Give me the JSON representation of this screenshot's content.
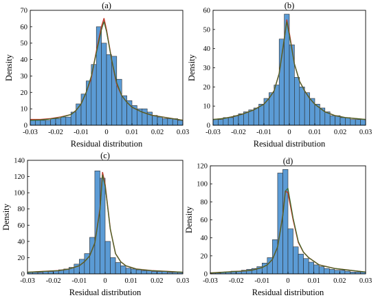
{
  "colors": {
    "bar_fill": "#5b9bd5",
    "bar_stroke": "#2b2b2b",
    "density_curve": "#c0392b",
    "fit_curve": "#3d6b2a"
  },
  "chart_data": [
    {
      "type": "bar",
      "title": "(a)",
      "xlabel": "Residual distribution",
      "ylabel": "Density",
      "xlim": [
        -0.03,
        0.03
      ],
      "ylim": [
        0,
        70
      ],
      "xticks": [
        "-0.03",
        "-0.02",
        "-0.01",
        "0",
        "0.01",
        "0.02",
        "0.03"
      ],
      "yticks": [
        "0",
        "10",
        "20",
        "30",
        "40",
        "50",
        "60",
        "70"
      ],
      "bin_edges_range": [
        -0.03,
        0.03
      ],
      "bin_width": 0.002,
      "values": [
        3,
        3,
        3,
        3,
        4,
        4,
        5,
        5,
        8,
        13,
        19,
        27,
        37,
        60,
        50,
        43,
        42,
        28,
        18,
        15,
        12,
        10,
        10,
        8,
        6,
        5,
        4,
        4,
        4,
        3
      ],
      "density_curve": [
        [
          -0.03,
          3.5
        ],
        [
          -0.026,
          3.5
        ],
        [
          -0.022,
          4
        ],
        [
          -0.018,
          5
        ],
        [
          -0.014,
          6.5
        ],
        [
          -0.012,
          9
        ],
        [
          -0.01,
          13
        ],
        [
          -0.008,
          20
        ],
        [
          -0.006,
          29
        ],
        [
          -0.004,
          45
        ],
        [
          -0.002,
          60
        ],
        [
          -0.001,
          65
        ],
        [
          0,
          58
        ],
        [
          0.002,
          40
        ],
        [
          0.004,
          25
        ],
        [
          0.006,
          18
        ],
        [
          0.008,
          14
        ],
        [
          0.01,
          11
        ],
        [
          0.014,
          8
        ],
        [
          0.018,
          6
        ],
        [
          0.022,
          5
        ],
        [
          0.026,
          4
        ],
        [
          0.03,
          3
        ]
      ],
      "fit_curve": [
        [
          -0.03,
          3
        ],
        [
          -0.026,
          3.2
        ],
        [
          -0.022,
          3.8
        ],
        [
          -0.018,
          4.8
        ],
        [
          -0.014,
          6.5
        ],
        [
          -0.012,
          9
        ],
        [
          -0.01,
          13
        ],
        [
          -0.008,
          20
        ],
        [
          -0.006,
          30
        ],
        [
          -0.004,
          44
        ],
        [
          -0.002,
          58
        ],
        [
          -0.001,
          63
        ],
        [
          0,
          57
        ],
        [
          0.002,
          40
        ],
        [
          0.004,
          26
        ],
        [
          0.006,
          18
        ],
        [
          0.008,
          14
        ],
        [
          0.01,
          11
        ],
        [
          0.014,
          8
        ],
        [
          0.018,
          6
        ],
        [
          0.022,
          5
        ],
        [
          0.026,
          4
        ],
        [
          0.03,
          3
        ]
      ],
      "grid": false
    },
    {
      "type": "bar",
      "title": "(b)",
      "xlabel": "Residual distribution",
      "ylabel": "Density",
      "xlim": [
        -0.03,
        0.03
      ],
      "ylim": [
        0,
        60
      ],
      "xticks": [
        "-0.03",
        "-0.02",
        "-0.01",
        "0",
        "0.01",
        "0.02",
        "0.03"
      ],
      "yticks": [
        "0",
        "10",
        "20",
        "30",
        "40",
        "50",
        "60"
      ],
      "bin_edges_range": [
        -0.03,
        0.03
      ],
      "bin_width": 0.002,
      "values": [
        3,
        3,
        4,
        4,
        5,
        6,
        7,
        8,
        9,
        11,
        14,
        17,
        21,
        45,
        58,
        42,
        25,
        20,
        17,
        14,
        11,
        9,
        7,
        5,
        5,
        4,
        4,
        3,
        3,
        3
      ],
      "density_curve": [
        [
          -0.03,
          3
        ],
        [
          -0.026,
          3.5
        ],
        [
          -0.022,
          4.5
        ],
        [
          -0.018,
          6
        ],
        [
          -0.014,
          8
        ],
        [
          -0.01,
          11
        ],
        [
          -0.008,
          14
        ],
        [
          -0.006,
          18
        ],
        [
          -0.004,
          27
        ],
        [
          -0.002,
          45
        ],
        [
          -0.001,
          55
        ],
        [
          0,
          48
        ],
        [
          0.002,
          32
        ],
        [
          0.004,
          23
        ],
        [
          0.006,
          18
        ],
        [
          0.008,
          14
        ],
        [
          0.01,
          11
        ],
        [
          0.014,
          7
        ],
        [
          0.018,
          5
        ],
        [
          0.022,
          4
        ],
        [
          0.026,
          3.5
        ],
        [
          0.03,
          3
        ]
      ],
      "fit_curve": [
        [
          -0.03,
          3
        ],
        [
          -0.026,
          3.5
        ],
        [
          -0.022,
          4.5
        ],
        [
          -0.018,
          6
        ],
        [
          -0.014,
          8
        ],
        [
          -0.01,
          11
        ],
        [
          -0.008,
          14
        ],
        [
          -0.006,
          18
        ],
        [
          -0.004,
          27
        ],
        [
          -0.002,
          45
        ],
        [
          -0.001,
          54
        ],
        [
          0,
          47
        ],
        [
          0.002,
          32
        ],
        [
          0.004,
          23
        ],
        [
          0.006,
          18
        ],
        [
          0.008,
          14
        ],
        [
          0.01,
          11
        ],
        [
          0.014,
          7
        ],
        [
          0.018,
          5
        ],
        [
          0.022,
          4
        ],
        [
          0.026,
          3.5
        ],
        [
          0.03,
          3
        ]
      ],
      "grid": false
    },
    {
      "type": "bar",
      "title": "(c)",
      "xlabel": "Residual distribution",
      "ylabel": "Density",
      "xlim": [
        -0.03,
        0.03
      ],
      "ylim": [
        0,
        140
      ],
      "xticks": [
        "-0.03",
        "-0.02",
        "-0.01",
        "0",
        "0.01",
        "0.02",
        "0.03"
      ],
      "yticks": [
        "0",
        "20",
        "40",
        "60",
        "80",
        "100",
        "120",
        "140"
      ],
      "bin_edges_range": [
        -0.03,
        0.03
      ],
      "bin_width": 0.002,
      "values": [
        2,
        2,
        2,
        3,
        3,
        4,
        5,
        6,
        8,
        12,
        18,
        25,
        45,
        127,
        118,
        40,
        20,
        14,
        10,
        7,
        6,
        5,
        4,
        4,
        3,
        3,
        3,
        2,
        2,
        2
      ],
      "density_curve": [
        [
          -0.03,
          2
        ],
        [
          -0.024,
          3
        ],
        [
          -0.018,
          4
        ],
        [
          -0.014,
          6
        ],
        [
          -0.01,
          10
        ],
        [
          -0.008,
          15
        ],
        [
          -0.006,
          22
        ],
        [
          -0.004,
          38
        ],
        [
          -0.002,
          80
        ],
        [
          -0.001,
          125
        ],
        [
          0,
          110
        ],
        [
          0.002,
          55
        ],
        [
          0.004,
          25
        ],
        [
          0.006,
          15
        ],
        [
          0.008,
          10
        ],
        [
          0.012,
          6
        ],
        [
          0.018,
          4
        ],
        [
          0.024,
          3
        ],
        [
          0.03,
          2
        ]
      ],
      "fit_curve": [
        [
          -0.03,
          2
        ],
        [
          -0.024,
          3
        ],
        [
          -0.018,
          4
        ],
        [
          -0.014,
          6
        ],
        [
          -0.01,
          10
        ],
        [
          -0.008,
          15
        ],
        [
          -0.006,
          22
        ],
        [
          -0.004,
          38
        ],
        [
          -0.002,
          78
        ],
        [
          -0.001,
          122
        ],
        [
          0,
          108
        ],
        [
          0.002,
          55
        ],
        [
          0.004,
          25
        ],
        [
          0.006,
          15
        ],
        [
          0.008,
          10
        ],
        [
          0.012,
          6
        ],
        [
          0.018,
          4
        ],
        [
          0.024,
          3
        ],
        [
          0.03,
          2
        ]
      ],
      "grid": false
    },
    {
      "type": "bar",
      "title": "(d)",
      "xlabel": "Residual distribution",
      "ylabel": "Density",
      "xlim": [
        -0.03,
        0.03
      ],
      "ylim": [
        0,
        120
      ],
      "xticks": [
        "-0.03",
        "-0.02",
        "-0.01",
        "0",
        "0.01",
        "0.02",
        "0.03"
      ],
      "yticks": [
        "0",
        "20",
        "40",
        "60",
        "80",
        "100",
        "120"
      ],
      "bin_edges_range": [
        -0.03,
        0.03
      ],
      "bin_width": 0.002,
      "values": [
        1,
        1,
        2,
        2,
        3,
        3,
        4,
        5,
        6,
        8,
        12,
        18,
        38,
        112,
        116,
        50,
        30,
        22,
        17,
        13,
        10,
        8,
        6,
        5,
        4,
        4,
        3,
        2,
        2,
        2
      ],
      "density_curve": [
        [
          -0.03,
          1
        ],
        [
          -0.024,
          2
        ],
        [
          -0.018,
          3
        ],
        [
          -0.014,
          4
        ],
        [
          -0.01,
          7
        ],
        [
          -0.008,
          10
        ],
        [
          -0.006,
          16
        ],
        [
          -0.004,
          30
        ],
        [
          -0.002,
          65
        ],
        [
          -0.001,
          92
        ],
        [
          0,
          90
        ],
        [
          0.002,
          60
        ],
        [
          0.004,
          35
        ],
        [
          0.006,
          24
        ],
        [
          0.008,
          18
        ],
        [
          0.012,
          10
        ],
        [
          0.018,
          6
        ],
        [
          0.024,
          4
        ],
        [
          0.03,
          2
        ]
      ],
      "fit_curve": [
        [
          -0.03,
          1
        ],
        [
          -0.024,
          2
        ],
        [
          -0.018,
          3
        ],
        [
          -0.014,
          4
        ],
        [
          -0.01,
          7
        ],
        [
          -0.008,
          10
        ],
        [
          -0.006,
          16
        ],
        [
          -0.004,
          30
        ],
        [
          -0.002,
          64
        ],
        [
          -0.001,
          92
        ],
        [
          0,
          95
        ],
        [
          0.002,
          62
        ],
        [
          0.004,
          36
        ],
        [
          0.006,
          24
        ],
        [
          0.008,
          18
        ],
        [
          0.012,
          10
        ],
        [
          0.018,
          6
        ],
        [
          0.024,
          4
        ],
        [
          0.03,
          2
        ]
      ],
      "grid": false
    }
  ]
}
